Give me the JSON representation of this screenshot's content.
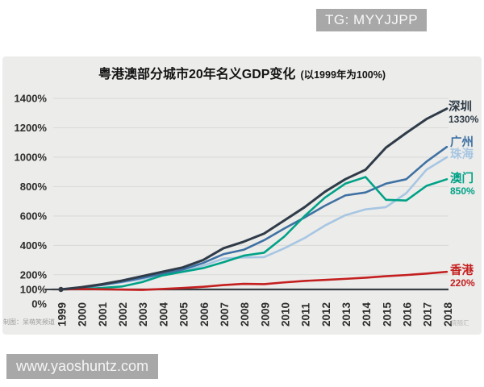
{
  "overlays": {
    "telegram_badge": "TG: MYYJJPP",
    "website_badge": "www.yaoshuntz.com"
  },
  "chart": {
    "title": "粤港澳部分城市20年名义GDP变化",
    "subtitle": "(以1999年为100%)",
    "credit": "制图：呆萌笑频道",
    "corner_watermark": "晓随汇"
  },
  "chart_data": {
    "type": "line",
    "title": "粤港澳部分城市20年名义GDP变化 (以1999年为100%)",
    "xlabel": "",
    "ylabel": "",
    "x": [
      1999,
      2000,
      2001,
      2002,
      2003,
      2004,
      2005,
      2006,
      2007,
      2008,
      2009,
      2010,
      2011,
      2012,
      2013,
      2014,
      2015,
      2016,
      2017,
      2018
    ],
    "y_ticks": [
      0,
      100,
      200,
      400,
      600,
      800,
      1000,
      1200,
      1400
    ],
    "ylim": [
      0,
      1450
    ],
    "baseline_value": 100,
    "grid": true,
    "legend_position": "colored labels at right line ends",
    "series": [
      {
        "id": "shenzhen",
        "name": "深圳",
        "end_label": "1330%",
        "color": "#2f3b48",
        "values": [
          100,
          115,
          135,
          160,
          190,
          220,
          250,
          300,
          380,
          425,
          480,
          570,
          660,
          765,
          850,
          915,
          1065,
          1165,
          1260,
          1330
        ]
      },
      {
        "id": "guangzhou",
        "name": "广州",
        "end_label": "",
        "color": "#3e71a3",
        "values": [
          100,
          113,
          130,
          152,
          178,
          205,
          235,
          280,
          340,
          370,
          435,
          515,
          590,
          670,
          740,
          760,
          820,
          850,
          970,
          1070
        ]
      },
      {
        "id": "zhuhai",
        "name": "珠海",
        "end_label": "",
        "color": "#a7c6e3",
        "values": [
          100,
          112,
          128,
          148,
          170,
          198,
          225,
          262,
          310,
          318,
          320,
          380,
          450,
          535,
          605,
          645,
          660,
          755,
          915,
          1000
        ]
      },
      {
        "id": "macau",
        "name": "澳门",
        "end_label": "850%",
        "color": "#00a287",
        "values": [
          100,
          104,
          110,
          120,
          150,
          195,
          220,
          245,
          285,
          330,
          350,
          460,
          600,
          725,
          820,
          865,
          710,
          705,
          805,
          850
        ]
      },
      {
        "id": "hongkong",
        "name": "香港",
        "end_label": "220%",
        "color": "#c41f1f",
        "values": [
          100,
          103,
          101,
          99,
          97,
          103,
          110,
          118,
          130,
          138,
          136,
          148,
          158,
          165,
          172,
          180,
          190,
          198,
          208,
          220
        ]
      }
    ]
  }
}
